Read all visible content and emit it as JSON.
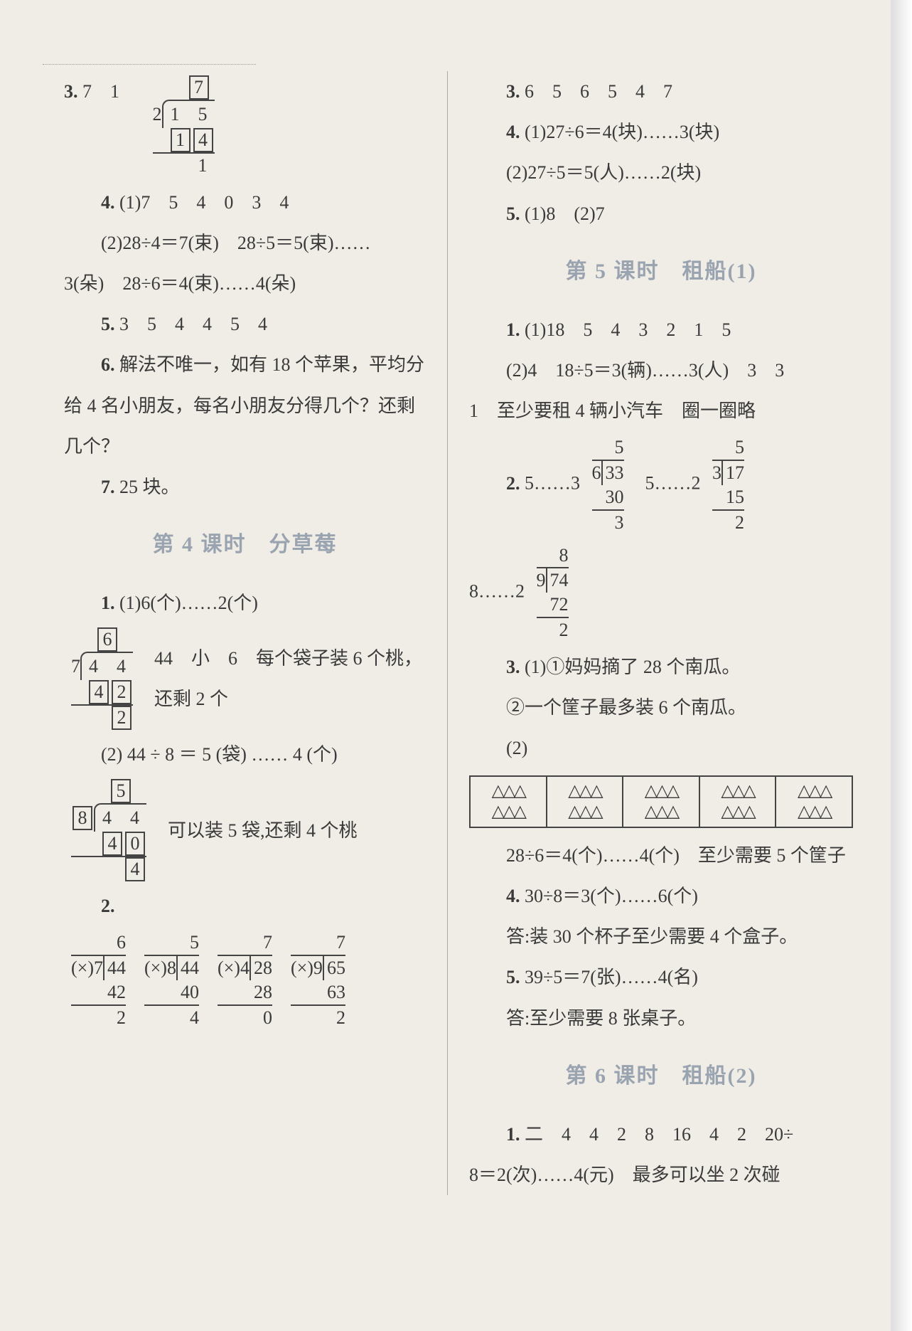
{
  "left": {
    "item3": {
      "label": "3.",
      "values": "7　1",
      "longdiv": {
        "quotient": "7",
        "divisor": "2",
        "dividend": "1　5",
        "sub": [
          "1",
          "4"
        ],
        "remainder": "1"
      }
    },
    "item4": {
      "label": "4.",
      "part1": "(1)7　5　4　0　3　4",
      "part2a": "(2)28÷4＝7(束)　28÷5＝5(束)……",
      "part2b": "3(朵)　28÷6＝4(束)……4(朵)"
    },
    "item5": {
      "label": "5.",
      "values": "3　5　4　4　5　4"
    },
    "item6": {
      "label": "6.",
      "text": "解法不唯一，如有 18 个苹果，平均分给 4 名小朋友，每名小朋友分得几个？还剩几个？"
    },
    "item7": {
      "label": "7.",
      "text": "25 块。"
    },
    "section4_title": "第 4 课时　分草莓",
    "s4_item1": {
      "label": "1.",
      "part1": "(1)6(个)……2(个)",
      "longdiv1": {
        "quotient": "6",
        "divisor": "7",
        "dividend": "4　4",
        "sub": [
          "4",
          "2"
        ],
        "remainder": "2"
      },
      "tail1": "44　小　6　每个袋子装 6 个桃，还剩 2 个",
      "part2": "(2) 44 ÷ 8 ＝ 5 (袋) …… 4 (个)",
      "longdiv2": {
        "quotient": "5",
        "divisor": "8",
        "dividend": "4　4",
        "sub": [
          "4",
          "0"
        ],
        "remainder": "4"
      },
      "tail2": "可以装 5 袋,还剩 4 个桃"
    },
    "s4_item2": {
      "label": "2.",
      "divs": [
        {
          "mark": "(×)",
          "divisor": "7",
          "dividend": "44",
          "quotient": "6",
          "sub": "42",
          "rem": "2"
        },
        {
          "mark": "(×)",
          "divisor": "8",
          "dividend": "44",
          "quotient": "5",
          "sub": "40",
          "rem": "4"
        },
        {
          "mark": "(×)",
          "divisor": "4",
          "dividend": "28",
          "quotient": "7",
          "sub": "28",
          "rem": "0"
        },
        {
          "mark": "(×)",
          "divisor": "9",
          "dividend": "65",
          "quotient": "7",
          "sub": "63",
          "rem": "2"
        }
      ]
    }
  },
  "right": {
    "item3": {
      "label": "3.",
      "values": "6　5　6　5　4　7"
    },
    "item4": {
      "label": "4.",
      "part1": "(1)27÷6＝4(块)……3(块)",
      "part2": "(2)27÷5＝5(人)……2(块)"
    },
    "item5": {
      "label": "5.",
      "text": "(1)8　(2)7"
    },
    "section5_title": "第 5 课时　租船(1)",
    "s5_item1": {
      "label": "1.",
      "part1": "(1)18　5　4　3　2　1　5",
      "part2": "(2)4　18÷5＝3(辆)……3(人)　3　3",
      "part3": "1　至少要租 4 辆小汽车　圈一圈略"
    },
    "s5_item2": {
      "label": "2.",
      "groups": [
        {
          "pre": "5……3",
          "divisor": "6",
          "dividend": "33",
          "quotient": "5",
          "sub": "30",
          "rem": "3"
        },
        {
          "pre": "5……2",
          "divisor": "3",
          "dividend": "17",
          "quotient": "5",
          "sub": "15",
          "rem": "2"
        },
        {
          "pre": "8……2",
          "divisor": "9",
          "dividend": "74",
          "quotient": "8",
          "sub": "72",
          "rem": "2"
        }
      ]
    },
    "s5_item3": {
      "label": "3.",
      "part1": "(1)①妈妈摘了 28 个南瓜。",
      "part2": "②一个筐子最多装 6 个南瓜。",
      "part3": "(2)",
      "tri_row": "△△△",
      "tri_count": 5,
      "calc": "28÷6＝4(个)……4(个)　至少需要 5 个筐子"
    },
    "s5_item4": {
      "label": "4.",
      "line1": "30÷8＝3(个)……6(个)",
      "line2": "答:装 30 个杯子至少需要 4 个盒子。"
    },
    "s5_item5": {
      "label": "5.",
      "line1": "39÷5＝7(张)……4(名)",
      "line2": "答:至少需要 8 张桌子。"
    },
    "section6_title": "第 6 课时　租船(2)",
    "s6_item1": {
      "label": "1.",
      "line1": "二　4　4　2　8　16　4　2　20÷",
      "line2": "8＝2(次)……4(元)　最多可以坐 2 次碰"
    }
  }
}
